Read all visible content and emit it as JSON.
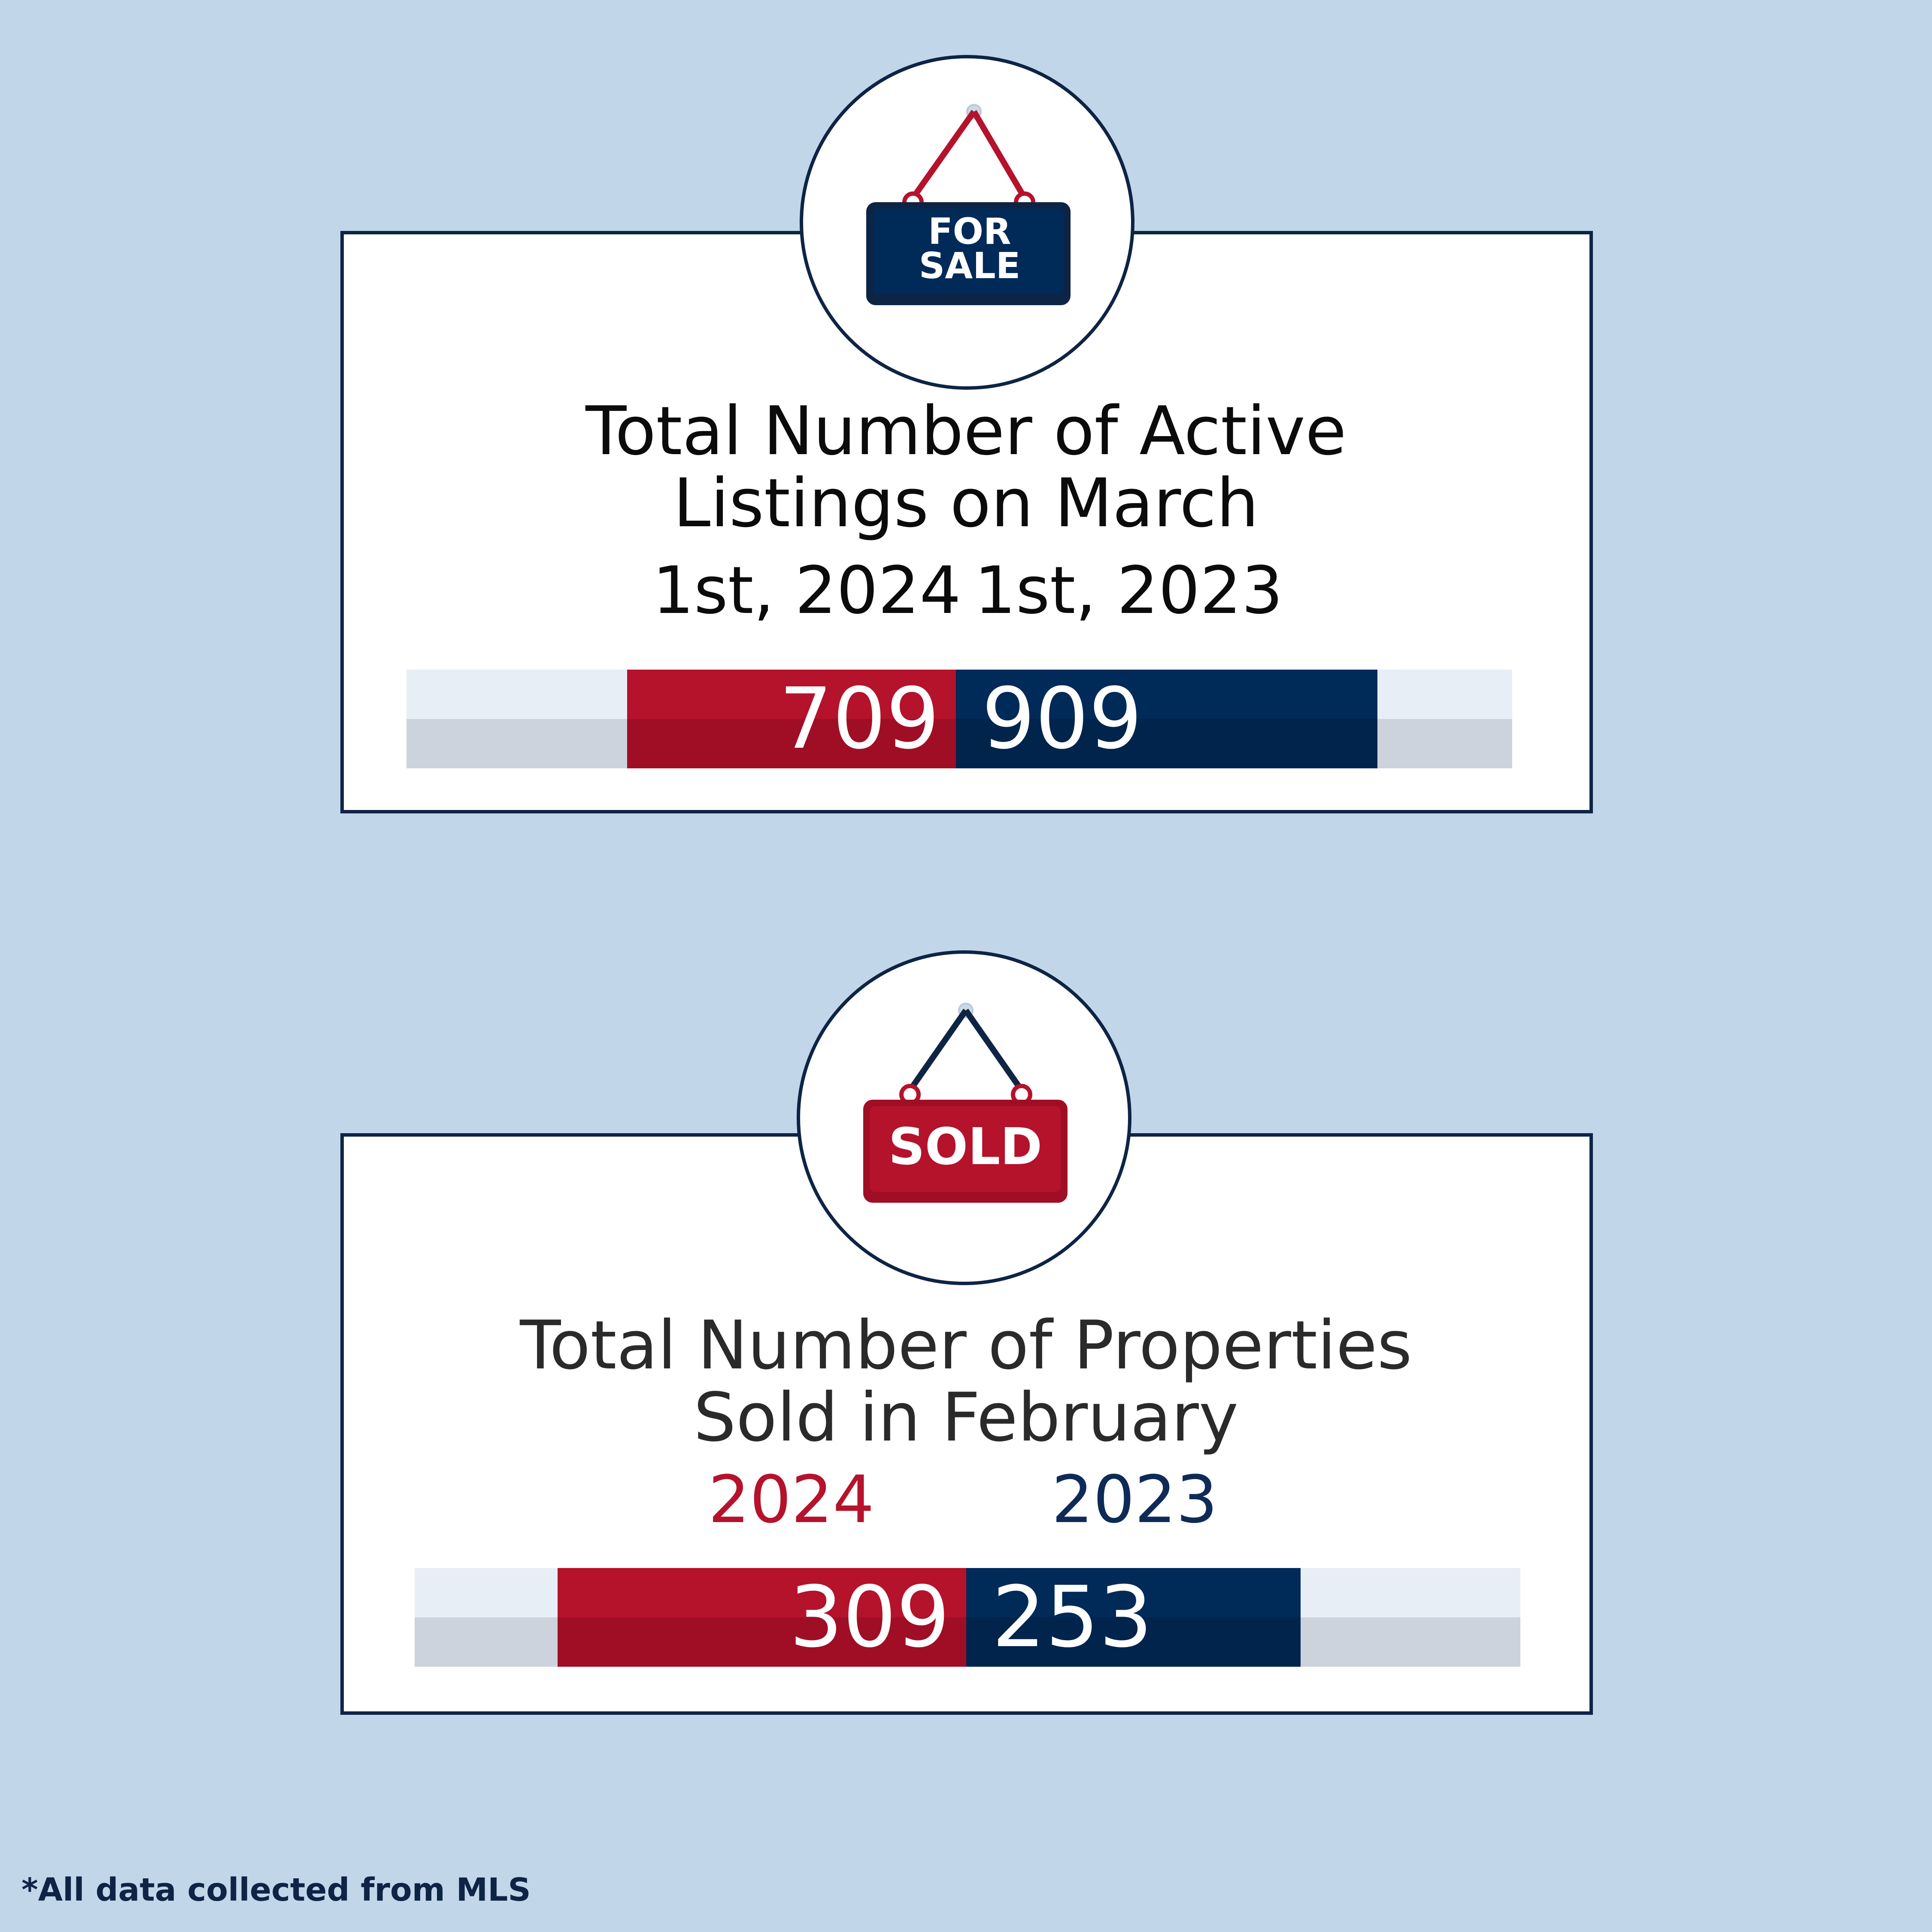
{
  "colors": {
    "background": "#c2d6e9",
    "navy": "#0e2445",
    "red": "#b5122c",
    "blue": "#002a58"
  },
  "listings": {
    "icon": "for-sale-sign-icon",
    "sign_text_line1": "FOR",
    "sign_text_line2": "SALE",
    "title_line1": "Total Number of Active",
    "title_line2": "Listings on March",
    "label_left": "1st, 2024",
    "label_right": "1st, 2023",
    "value_2024": 709,
    "value_2023": 909,
    "value_2024_text": "709",
    "value_2023_text": "909"
  },
  "sold": {
    "icon": "sold-sign-icon",
    "sign_text": "SOLD",
    "title_line1": "Total Number of Properties",
    "title_line2": "Sold in February",
    "year_left": "2024",
    "year_right": "2023",
    "value_2024": 309,
    "value_2023": 253,
    "value_2024_text": "309",
    "value_2023_text": "253"
  },
  "footnote": "*All data collected from MLS"
}
